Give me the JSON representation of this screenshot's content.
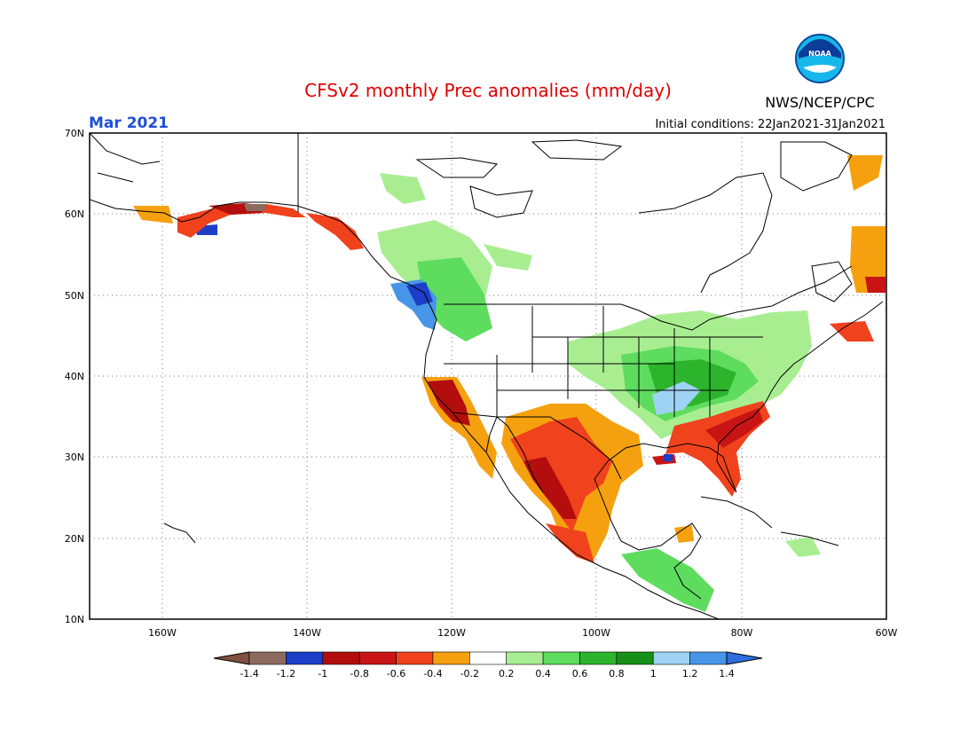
{
  "header": {
    "title": "CFSv2 monthly Prec anomalies (mm/day)",
    "month": "Mar 2021",
    "initial_conditions": "Initial conditions: 22Jan2021-31Jan2021",
    "agency": "NWS/NCEP/CPC",
    "logo_text": "NOAA"
  },
  "colors": {
    "title": "#e00000",
    "month": "#1f4fd8",
    "frame": "#000000"
  },
  "map": {
    "lat_labels": [
      "70N",
      "60N",
      "50N",
      "40N",
      "30N",
      "20N",
      "10N"
    ],
    "lon_labels": [
      "160W",
      "140W",
      "120W",
      "100W",
      "80W",
      "60W"
    ]
  },
  "colorbar": {
    "labels": [
      "-1.4",
      "-1.2",
      "-1",
      "-0.8",
      "-0.6",
      "-0.4",
      "-0.2",
      "0.2",
      "0.4",
      "0.6",
      "0.8",
      "1",
      "1.2",
      "1.4"
    ],
    "colors": [
      "#7f4f3f",
      "#8c6a5e",
      "#1c3ec8",
      "#b30d0d",
      "#c81414",
      "#f0421c",
      "#f5a10f",
      "#ffffff",
      "#a8ee91",
      "#5edc5e",
      "#2cb52c",
      "#169016",
      "#9fd3f5",
      "#4795e8",
      "#2f6ee0"
    ]
  }
}
